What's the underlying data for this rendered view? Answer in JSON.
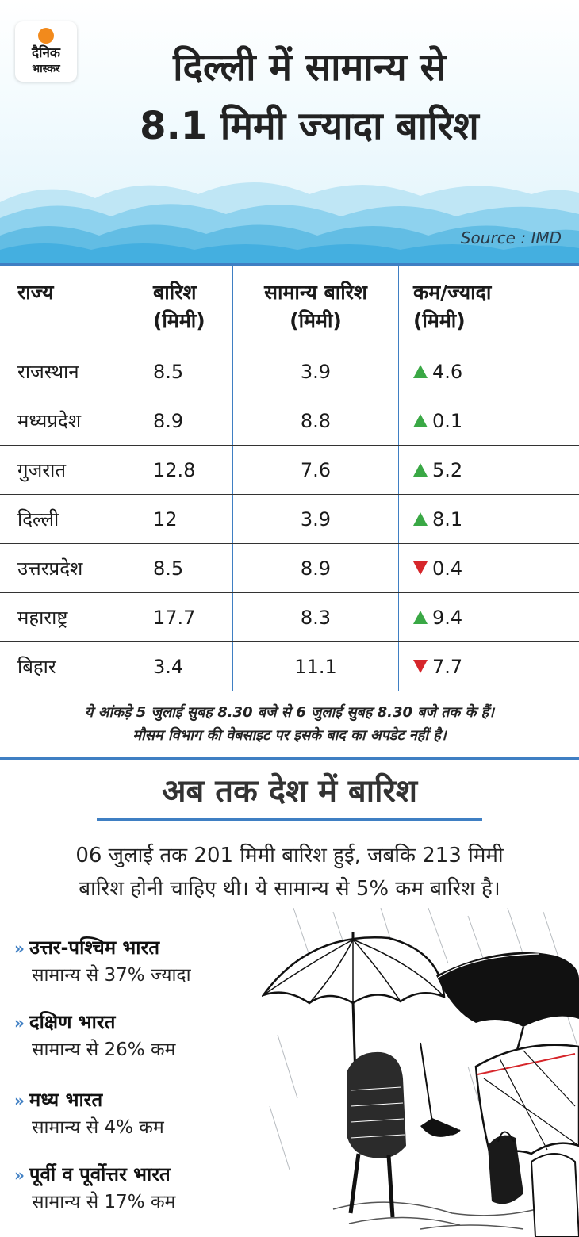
{
  "logo": {
    "line1": "दैनिक",
    "line2": "भास्कर"
  },
  "header": {
    "title_line1": "दिल्ली में सामान्य से",
    "title_line2": "8.1 मिमी ज्यादा बारिश",
    "source": "Source : IMD"
  },
  "table": {
    "headers": {
      "state": "राज्य",
      "rain": "बारिश\n(मिमी)",
      "normal": "सामान्य बारिश\n(मिमी)",
      "diff": "कम/ज्यादा\n(मिमी)"
    },
    "rows": [
      {
        "state": "राजस्थान",
        "rain": "8.5",
        "normal": "3.9",
        "diff": "4.6",
        "trend": "up"
      },
      {
        "state": "मध्यप्रदेश",
        "rain": "8.9",
        "normal": "8.8",
        "diff": "0.1",
        "trend": "up"
      },
      {
        "state": "गुजरात",
        "rain": "12.8",
        "normal": "7.6",
        "diff": "5.2",
        "trend": "up"
      },
      {
        "state": "दिल्ली",
        "rain": "12",
        "normal": "3.9",
        "diff": "8.1",
        "trend": "up"
      },
      {
        "state": "उत्तरप्रदेश",
        "rain": "8.5",
        "normal": "8.9",
        "diff": "0.4",
        "trend": "down"
      },
      {
        "state": "महाराष्ट्र",
        "rain": "17.7",
        "normal": "8.3",
        "diff": "9.4",
        "trend": "up"
      },
      {
        "state": "बिहार",
        "rain": "3.4",
        "normal": "11.1",
        "diff": "7.7",
        "trend": "down"
      }
    ]
  },
  "note": {
    "line1": "ये आंकड़े 5 जुलाई सुबह 8.30 बजे से 6 जुलाई सुबह 8.30 बजे तक के हैं।",
    "line2": "मौसम विभाग की वेबसाइट पर इसके बाद का अपडेट नहीं है।"
  },
  "country": {
    "heading": "अब तक देश में बारिश",
    "summary_line1": "06 जुलाई तक 201 मिमी बारिश हुई, जबकि 213 मिमी",
    "summary_line2": "बारिश होनी चाहिए थी। ये सामान्य से 5% कम बारिश है।",
    "bullet": "»",
    "regions": [
      {
        "name": "उत्तर-पश्चिम भारत",
        "value": "सामान्य से 37% ज्यादा"
      },
      {
        "name": "दक्षिण भारत",
        "value": "सामान्य से 26% कम"
      },
      {
        "name": "मध्य भारत",
        "value": "सामान्य से 4% कम"
      },
      {
        "name": "पूर्वी व पूर्वोत्तर भारत",
        "value": "सामान्य से 17% कम"
      }
    ]
  },
  "colors": {
    "accent": "#3f7fc3",
    "up": "#3aa845",
    "down": "#d6262b",
    "wave": "#5bb8de"
  }
}
